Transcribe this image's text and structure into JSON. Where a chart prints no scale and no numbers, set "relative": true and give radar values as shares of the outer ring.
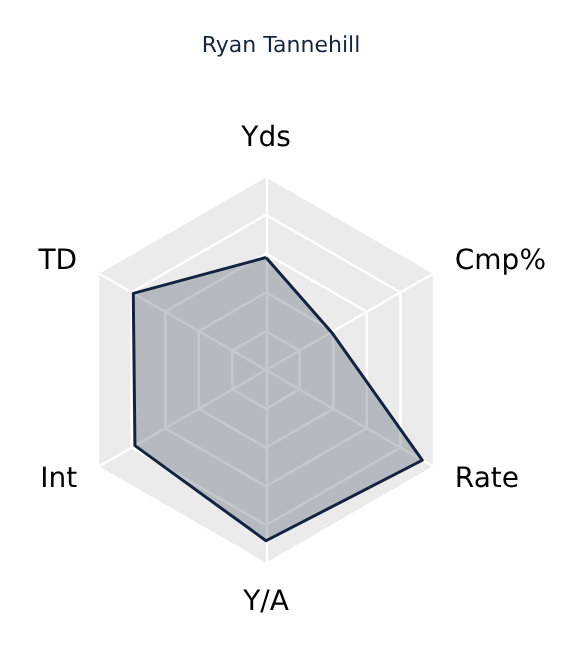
{
  "chart_data": {
    "type": "radar",
    "title": "Ryan Tannehill",
    "relative": true,
    "categories": [
      "Yds",
      "Cmp%",
      "Rate",
      "Y/A",
      "Int",
      "TD"
    ],
    "series": [
      {
        "color": "#14243f",
        "values": [
          0.58,
          0.39,
          0.93,
          0.88,
          0.78,
          0.79
        ]
      }
    ],
    "grid": true
  }
}
